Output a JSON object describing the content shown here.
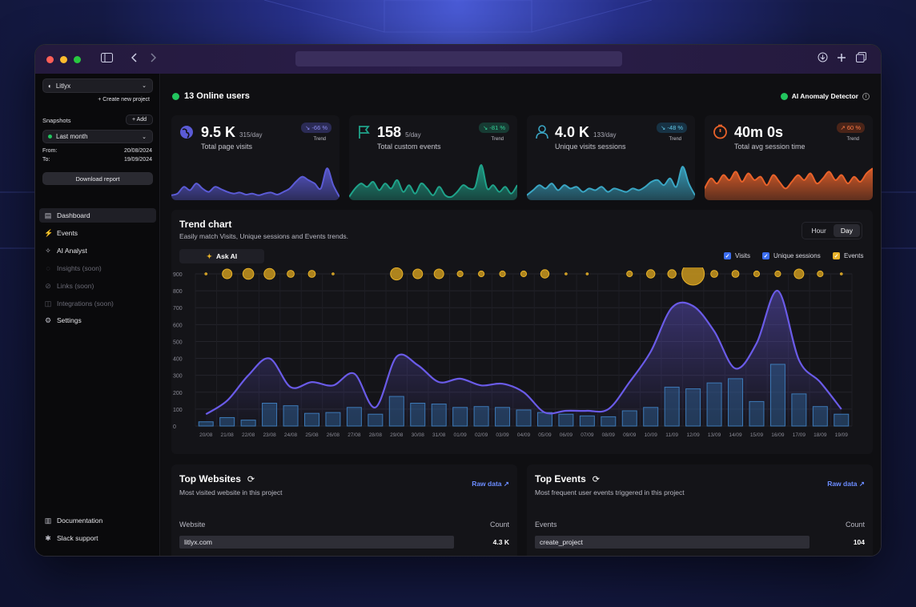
{
  "project": {
    "name": "Litlyx",
    "create_label": "+ Create new project"
  },
  "snapshots": {
    "label": "Snapshots",
    "add_label": "+ Add",
    "selected": "Last month",
    "from_label": "From:",
    "from": "20/08/2024",
    "to_label": "To:",
    "to": "19/09/2024"
  },
  "download_label": "Download report",
  "nav": [
    {
      "label": "Dashboard",
      "icon": "dashboard-icon"
    },
    {
      "label": "Events",
      "icon": "events-icon"
    },
    {
      "label": "AI Analyst",
      "icon": "sparkle-icon"
    },
    {
      "label": "Insights (soon)",
      "icon": "bulb-icon"
    },
    {
      "label": "Links (soon)",
      "icon": "link-icon"
    },
    {
      "label": "Integrations (soon)",
      "icon": "integrations-icon"
    },
    {
      "label": "Settings",
      "icon": "gear-icon"
    }
  ],
  "footer_nav": [
    {
      "label": "Documentation",
      "icon": "doc-icon"
    },
    {
      "label": "Slack support",
      "icon": "slack-icon"
    }
  ],
  "online": {
    "label": "13 Online users",
    "color": "#22c55e"
  },
  "anomaly": {
    "label": "AI Anomaly Detector",
    "color": "#22c55e"
  },
  "stats": [
    {
      "value": "9.5 K",
      "per_day": "315/day",
      "label": "Total page visits",
      "trend": "-66 %",
      "trend_label": "Trend",
      "color": "#5b5bd6",
      "trend_color": "#8b8bf0",
      "trend_bg": "#2b2b55",
      "spark": [
        0.1,
        0.15,
        0.35,
        0.25,
        0.45,
        0.3,
        0.2,
        0.35,
        0.28,
        0.2,
        0.15,
        0.18,
        0.12,
        0.15,
        0.1,
        0.15,
        0.18,
        0.12,
        0.2,
        0.3,
        0.5,
        0.65,
        0.55,
        0.45,
        0.3,
        0.9,
        0.4,
        0.05
      ]
    },
    {
      "value": "158",
      "per_day": "5/day",
      "label": "Total custom events",
      "trend": "-81 %",
      "trend_label": "Trend",
      "color": "#1fa38a",
      "trend_color": "#34d399",
      "trend_bg": "#173b33",
      "spark": [
        0.05,
        0.3,
        0.45,
        0.35,
        0.5,
        0.25,
        0.45,
        0.3,
        0.55,
        0.2,
        0.4,
        0.15,
        0.45,
        0.3,
        0.1,
        0.35,
        0.1,
        0.05,
        0.2,
        0.4,
        0.3,
        0.35,
        1.0,
        0.3,
        0.4,
        0.2,
        0.35,
        0.15,
        0.4
      ]
    },
    {
      "value": "4.0 K",
      "per_day": "133/day",
      "label": "Unique visits sessions",
      "trend": "-48 %",
      "trend_label": "Trend",
      "color": "#3aa6c4",
      "trend_color": "#60c6e4",
      "trend_bg": "#173244",
      "spark": [
        0.1,
        0.25,
        0.4,
        0.3,
        0.45,
        0.25,
        0.4,
        0.3,
        0.35,
        0.2,
        0.3,
        0.25,
        0.35,
        0.2,
        0.3,
        0.25,
        0.2,
        0.3,
        0.25,
        0.35,
        0.5,
        0.55,
        0.4,
        0.6,
        0.35,
        0.95,
        0.45,
        0.1
      ]
    },
    {
      "value": "40m 0s",
      "per_day": "",
      "label": "Total avg session time",
      "trend": "60 %",
      "trend_label": "Trend",
      "color": "#e8622a",
      "trend_color": "#ff7a45",
      "trend_bg": "#4a2418",
      "spark": [
        0.3,
        0.6,
        0.45,
        0.7,
        0.55,
        0.8,
        0.5,
        0.75,
        0.55,
        0.65,
        0.4,
        0.7,
        0.5,
        0.3,
        0.5,
        0.7,
        0.55,
        0.75,
        0.45,
        0.6,
        0.8,
        0.55,
        0.7,
        0.45,
        0.65,
        0.5,
        0.75,
        0.9
      ]
    }
  ],
  "trend": {
    "title": "Trend chart",
    "subtitle": "Easily match Visits, Unique sessions and Events trends.",
    "ask_ai": "Ask AI",
    "toggle": [
      "Hour",
      "Day"
    ],
    "legend": [
      {
        "label": "Visits",
        "color": "#3b6df0"
      },
      {
        "label": "Unique sessions",
        "color": "#3b6df0"
      },
      {
        "label": "Events",
        "color": "#e8b229"
      }
    ]
  },
  "chart_data": {
    "type": "bar",
    "categories": [
      "20/08",
      "21/08",
      "22/08",
      "23/08",
      "24/08",
      "25/08",
      "26/08",
      "27/08",
      "28/08",
      "29/08",
      "30/08",
      "31/08",
      "01/09",
      "02/09",
      "03/09",
      "04/09",
      "05/09",
      "06/09",
      "07/09",
      "08/09",
      "09/09",
      "10/09",
      "11/09",
      "12/09",
      "13/09",
      "14/09",
      "15/09",
      "16/09",
      "17/09",
      "18/09",
      "19/09"
    ],
    "ylim": [
      0,
      900
    ],
    "yticks": [
      "0",
      "100",
      "200",
      "300",
      "400",
      "500",
      "600",
      "700",
      "800",
      "900"
    ],
    "series": [
      {
        "name": "Visits",
        "type": "line",
        "values": [
          70,
          150,
          300,
          400,
          230,
          260,
          240,
          310,
          110,
          410,
          360,
          260,
          280,
          240,
          250,
          200,
          80,
          90,
          90,
          100,
          260,
          440,
          700,
          710,
          560,
          340,
          490,
          800,
          390,
          260,
          100
        ]
      },
      {
        "name": "Unique sessions",
        "type": "bar",
        "values": [
          25,
          50,
          35,
          135,
          120,
          75,
          80,
          110,
          70,
          175,
          135,
          130,
          110,
          115,
          110,
          95,
          80,
          70,
          60,
          55,
          90,
          110,
          230,
          220,
          255,
          280,
          145,
          365,
          190,
          115,
          70
        ]
      },
      {
        "name": "Events",
        "type": "bubble",
        "values": [
          1,
          5,
          6,
          6,
          3,
          3,
          1,
          0,
          0,
          7,
          5,
          5,
          2,
          2,
          2,
          2,
          4,
          1,
          1,
          0,
          2,
          4,
          4,
          16,
          3,
          3,
          2,
          2,
          5,
          2,
          1
        ]
      }
    ]
  },
  "top_websites": {
    "title": "Top Websites",
    "subtitle": "Most visited website in this project",
    "raw": "Raw data ↗",
    "col1": "Website",
    "col2": "Count",
    "rows": [
      {
        "name": "litlyx.com",
        "count": "4.3 K"
      }
    ]
  },
  "top_events": {
    "title": "Top Events",
    "subtitle": "Most frequent user events triggered in this project",
    "raw": "Raw data ↗",
    "col1": "Events",
    "col2": "Count",
    "rows": [
      {
        "name": "create_project",
        "count": "104"
      }
    ]
  }
}
